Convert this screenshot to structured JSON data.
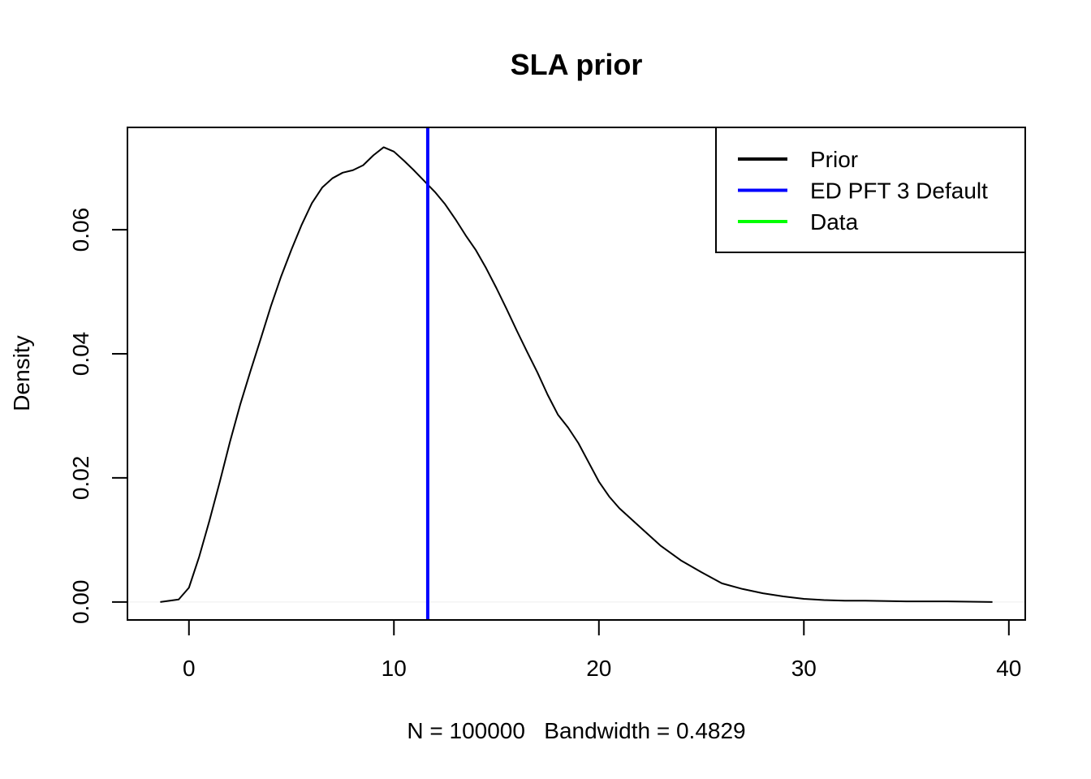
{
  "chart_data": {
    "type": "line",
    "title": "SLA prior",
    "xlabel": "N = 100000   Bandwidth = 0.4829",
    "ylabel": "Density",
    "xlim": [
      -3,
      40.8
    ],
    "ylim": [
      -0.0029,
      0.0765
    ],
    "x_ticks": [
      0,
      10,
      20,
      30,
      40
    ],
    "x_tick_labels": [
      "0",
      "10",
      "20",
      "30",
      "40"
    ],
    "y_ticks": [
      0,
      0.02,
      0.04,
      0.06
    ],
    "y_tick_labels": [
      "0.00",
      "0.02",
      "0.04",
      "0.06"
    ],
    "grid": false,
    "legend": {
      "position": "top-right",
      "entries": [
        {
          "label": "Prior",
          "color": "#000000"
        },
        {
          "label": "ED PFT 3 Default",
          "color": "#0000ff"
        },
        {
          "label": "Data",
          "color": "#00ff00"
        }
      ]
    },
    "vlines": [
      {
        "name": "ED PFT 3 Default",
        "x": 11.65,
        "color": "#0000ff"
      }
    ],
    "series": [
      {
        "name": "Prior",
        "color": "#000000",
        "x": [
          -1.4,
          -0.5,
          0,
          0.5,
          1,
          1.5,
          2,
          2.5,
          3,
          3.5,
          4,
          4.5,
          5,
          5.5,
          6,
          6.5,
          7,
          7.5,
          8,
          8.5,
          9,
          9.5,
          10,
          10.5,
          11,
          11.5,
          12,
          12.5,
          13,
          13.5,
          14,
          14.5,
          15,
          15.5,
          16,
          16.5,
          17,
          17.5,
          18,
          18.5,
          19,
          19.5,
          20,
          20.5,
          21,
          22,
          23,
          24,
          25,
          26,
          27,
          28,
          29,
          30,
          31,
          32,
          33,
          35,
          37,
          39.2
        ],
        "y": [
          0.0,
          0.0004,
          0.0023,
          0.0073,
          0.0131,
          0.0193,
          0.0258,
          0.0318,
          0.0372,
          0.0424,
          0.0477,
          0.0525,
          0.0568,
          0.0608,
          0.0643,
          0.0668,
          0.0683,
          0.0692,
          0.0696,
          0.0704,
          0.072,
          0.0733,
          0.0726,
          0.0711,
          0.0695,
          0.0678,
          0.0661,
          0.0641,
          0.0617,
          0.0591,
          0.0567,
          0.0538,
          0.0506,
          0.0472,
          0.0437,
          0.0403,
          0.037,
          0.0334,
          0.0302,
          0.0281,
          0.0256,
          0.0225,
          0.0194,
          0.017,
          0.0151,
          0.0121,
          0.0091,
          0.0067,
          0.0048,
          0.003,
          0.0021,
          0.0014,
          0.0009,
          0.0005,
          0.0003,
          0.0002,
          0.0002,
          0.0001,
          0.0001,
          0.0
        ]
      }
    ]
  }
}
